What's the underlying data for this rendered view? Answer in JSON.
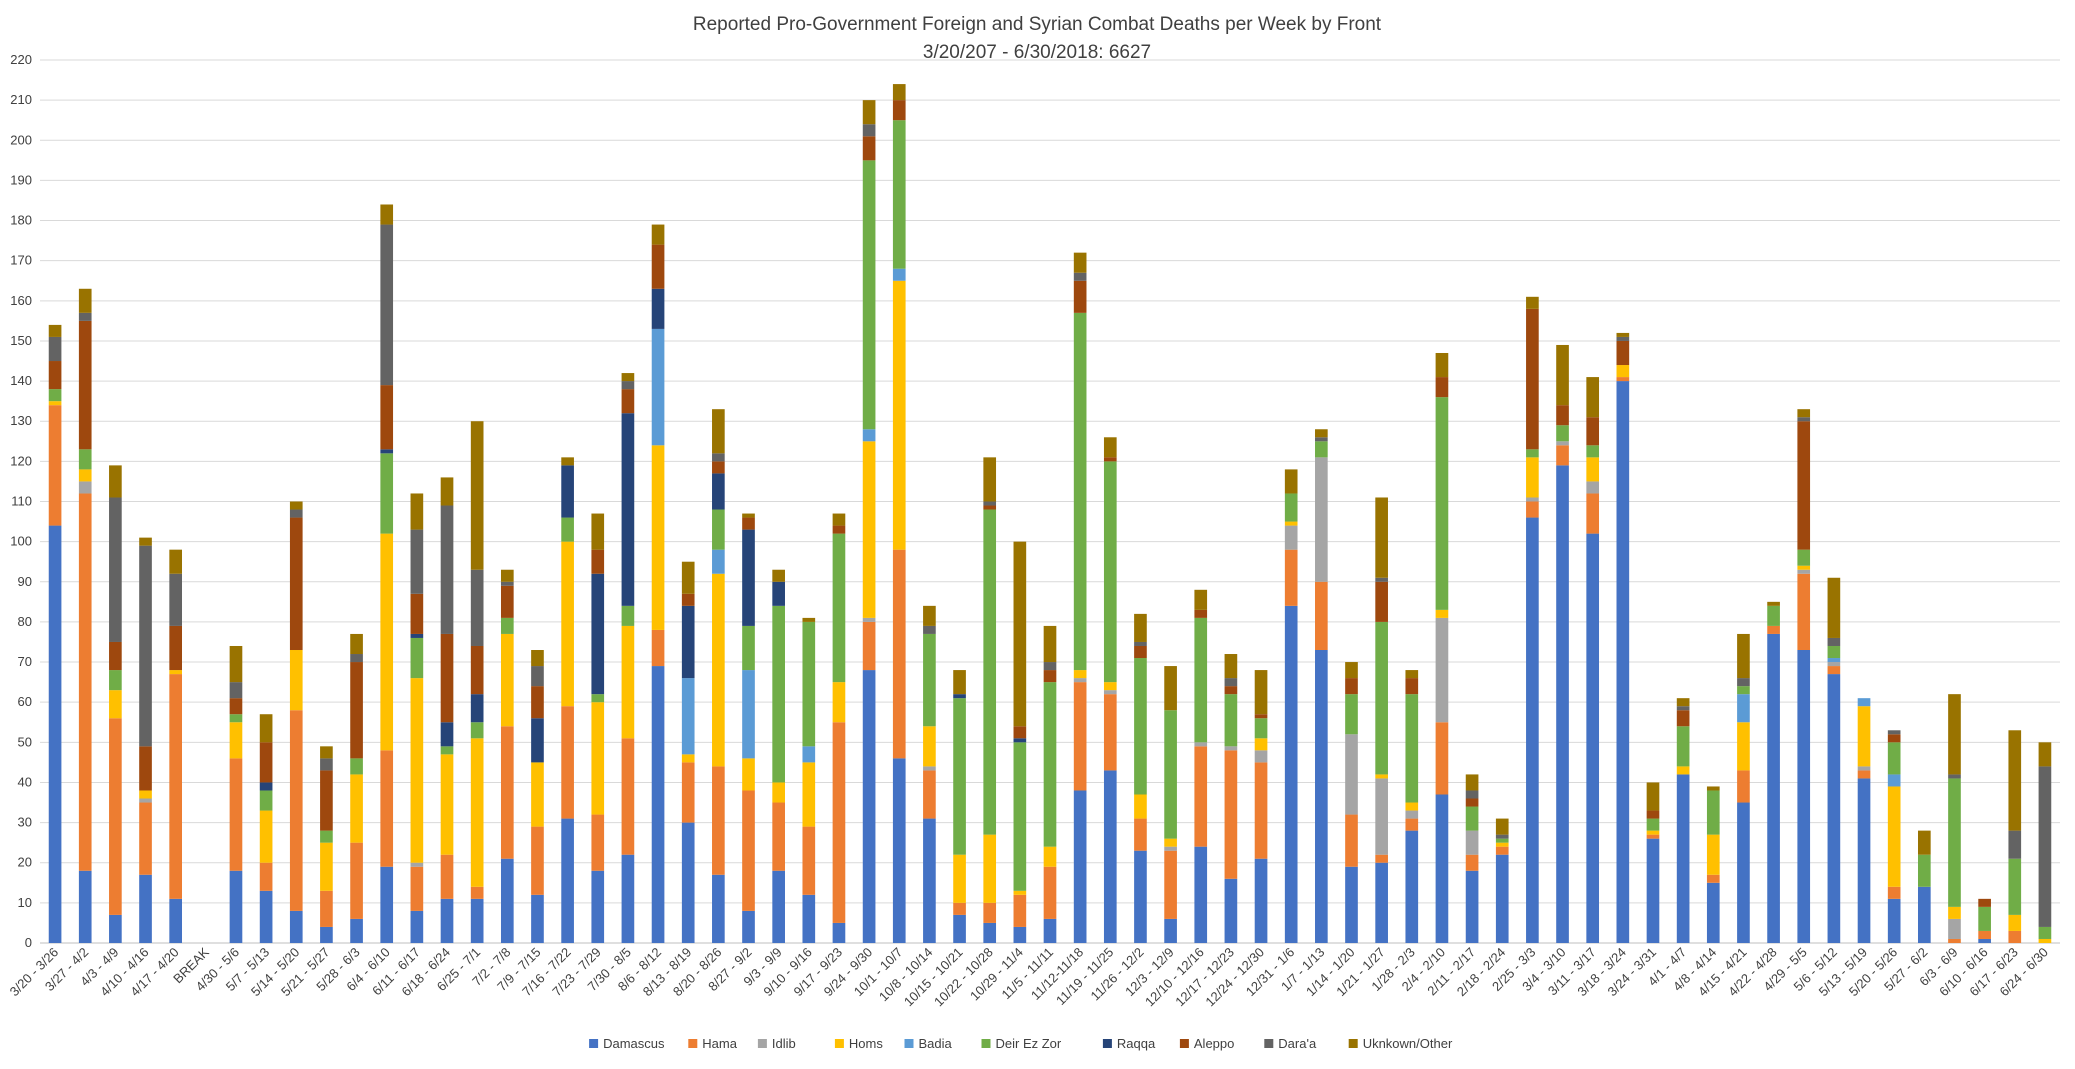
{
  "chart_data": {
    "type": "bar",
    "stacked": true,
    "title_line1": "Reported Pro-Government  Foreign and Syrian Combat Deaths per Week by Front",
    "title_line2": "3/20/207 - 6/30/2018: 6627",
    "ylim": [
      0,
      220
    ],
    "y_ticks": [
      0,
      10,
      20,
      30,
      40,
      50,
      60,
      70,
      80,
      90,
      100,
      110,
      120,
      130,
      140,
      150,
      160,
      170,
      180,
      190,
      200,
      210,
      220
    ],
    "grid": true,
    "legend_position": "bottom",
    "categories": [
      "3/20 - 3/26",
      "3/27 - 4/2",
      "4/3 - 4/9",
      "4/10 - 4/16",
      "4/17 - 4/20",
      "BREAK",
      "4/30 - 5/6",
      "5/7 - 5/13",
      "5/14 - 5/20",
      "5/21 - 5/27",
      "5/28 - 6/3",
      "6/4 - 6/10",
      "6/11 - 6/17",
      "6/18 - 6/24",
      "6/25 - 7/1",
      "7/2 - 7/8",
      "7/9 - 7/15",
      "7/16 - 7/22",
      "7/23 - 7/29",
      "7/30 - 8/5",
      "8/6 - 8/12",
      "8/13 - 8/19",
      "8/20 - 8/26",
      "8/27 - 9/2",
      "9/3 - 9/9",
      "9/10 - 9/16",
      "9/17 - 9/23",
      "9/24 - 9/30",
      "10/1 - 10/7",
      "10/8 - 10/14",
      "10/15 - 10/21",
      "10/22 - 10/28",
      "10/29 - 11/4",
      "11/5 - 11/11",
      "11/12-11/18",
      "11/19 - 11/25",
      "11/26 - 12/2",
      "12/3 - 12/9",
      "12/10 - 12/16",
      "12/17 - 12/23",
      "12/24 - 12/30",
      "12/31 - 1/6",
      "1/7 - 1/13",
      "1/14 - 1/20",
      "1/21 - 1/27",
      "1/28 - 2/3",
      "2/4 - 2/10",
      "2/11 - 2/17",
      "2/18 - 2/24",
      "2/25 - 3/3",
      "3/4 - 3/10",
      "3/11 - 3/17",
      "3/18 - 3/24",
      "3/24 - 3/31",
      "4/1 - 4/7",
      "4/8 - 4/14",
      "4/15 - 4/21",
      "4/22 - 4/28",
      "4/29 - 5/5",
      "5/6 - 5/12",
      "5/13 - 5/19",
      "5/20 - 5/26",
      "5/27 - 6/2",
      "6/3 - 6/9",
      "6/10 - 6/16",
      "6/17 - 6/23",
      "6/24 - 6/30"
    ],
    "series": [
      {
        "name": "Damascus",
        "color": "#4472C4",
        "values": [
          104,
          18,
          7,
          17,
          11,
          0,
          18,
          13,
          8,
          4,
          6,
          19,
          8,
          11,
          11,
          21,
          12,
          31,
          18,
          22,
          69,
          30,
          17,
          8,
          18,
          12,
          5,
          68,
          46,
          31,
          7,
          5,
          4,
          6,
          38,
          43,
          23,
          6,
          24,
          16,
          21,
          84,
          73,
          19,
          20,
          28,
          37,
          18,
          22,
          106,
          119,
          102,
          140,
          26,
          42,
          15,
          35,
          77,
          73,
          67,
          41,
          11,
          14,
          0,
          1,
          0,
          0
        ]
      },
      {
        "name": "Hama",
        "color": "#ED7D31",
        "values": [
          30,
          94,
          49,
          18,
          56,
          0,
          28,
          7,
          50,
          9,
          19,
          29,
          11,
          11,
          3,
          33,
          17,
          28,
          14,
          29,
          9,
          15,
          27,
          30,
          17,
          17,
          50,
          12,
          52,
          12,
          3,
          5,
          8,
          13,
          27,
          19,
          8,
          17,
          25,
          32,
          24,
          14,
          17,
          13,
          2,
          3,
          18,
          4,
          2,
          4,
          5,
          10,
          1,
          1,
          0,
          2,
          8,
          2,
          19,
          2,
          2,
          3,
          0,
          1,
          2,
          3,
          0
        ]
      },
      {
        "name": "Idlib",
        "color": "#A5A5A5",
        "values": [
          0,
          3,
          0,
          1,
          0,
          0,
          0,
          0,
          0,
          0,
          0,
          0,
          1,
          0,
          0,
          0,
          0,
          0,
          0,
          0,
          0,
          0,
          0,
          0,
          0,
          0,
          0,
          1,
          0,
          1,
          0,
          0,
          0,
          0,
          1,
          1,
          0,
          1,
          1,
          1,
          3,
          6,
          31,
          20,
          19,
          2,
          26,
          6,
          0,
          1,
          1,
          3,
          0,
          0,
          0,
          0,
          0,
          0,
          1,
          1,
          1,
          0,
          0,
          5,
          0,
          0,
          0
        ]
      },
      {
        "name": "Homs",
        "color": "#FFC000",
        "values": [
          1,
          3,
          7,
          2,
          1,
          0,
          9,
          13,
          15,
          12,
          17,
          54,
          46,
          25,
          37,
          23,
          16,
          41,
          28,
          28,
          46,
          2,
          48,
          8,
          5,
          16,
          10,
          44,
          67,
          10,
          12,
          17,
          1,
          5,
          2,
          2,
          6,
          2,
          0,
          0,
          3,
          1,
          0,
          0,
          1,
          2,
          2,
          0,
          1,
          10,
          0,
          6,
          3,
          1,
          2,
          10,
          12,
          0,
          1,
          0,
          15,
          25,
          0,
          3,
          0,
          4,
          1
        ]
      },
      {
        "name": "Badia",
        "color": "#5B9BD5",
        "values": [
          0,
          0,
          0,
          0,
          0,
          0,
          0,
          0,
          0,
          0,
          0,
          0,
          0,
          0,
          0,
          0,
          0,
          0,
          0,
          0,
          29,
          19,
          6,
          22,
          0,
          4,
          0,
          3,
          3,
          0,
          0,
          0,
          0,
          0,
          0,
          0,
          0,
          0,
          0,
          0,
          0,
          0,
          0,
          0,
          0,
          0,
          0,
          0,
          0,
          0,
          0,
          0,
          0,
          0,
          0,
          0,
          7,
          0,
          0,
          1,
          2,
          3,
          0,
          0,
          0,
          0,
          0
        ]
      },
      {
        "name": "Deir Ez Zor",
        "color": "#70AD47",
        "values": [
          3,
          5,
          5,
          0,
          0,
          0,
          2,
          5,
          0,
          3,
          4,
          20,
          10,
          2,
          4,
          4,
          0,
          6,
          2,
          5,
          0,
          0,
          10,
          11,
          44,
          31,
          37,
          67,
          37,
          23,
          39,
          81,
          37,
          41,
          89,
          55,
          34,
          32,
          31,
          13,
          5,
          7,
          4,
          10,
          38,
          27,
          53,
          6,
          1,
          2,
          4,
          3,
          0,
          3,
          10,
          11,
          2,
          5,
          4,
          3,
          0,
          8,
          8,
          32,
          6,
          14,
          3
        ]
      },
      {
        "name": "Raqqa",
        "color": "#264478",
        "values": [
          0,
          0,
          0,
          0,
          0,
          0,
          0,
          2,
          0,
          0,
          0,
          1,
          1,
          6,
          7,
          0,
          11,
          13,
          30,
          48,
          10,
          18,
          9,
          24,
          6,
          0,
          0,
          0,
          0,
          0,
          1,
          0,
          1,
          0,
          0,
          0,
          0,
          0,
          0,
          0,
          0,
          0,
          0,
          0,
          0,
          0,
          0,
          0,
          0,
          0,
          0,
          0,
          0,
          0,
          0,
          0,
          0,
          0,
          0,
          0,
          0,
          0,
          0,
          0,
          0,
          0,
          0
        ]
      },
      {
        "name": "Aleppo",
        "color": "#9E480E",
        "values": [
          7,
          32,
          7,
          11,
          11,
          0,
          4,
          10,
          33,
          15,
          24,
          16,
          10,
          22,
          12,
          8,
          8,
          0,
          6,
          6,
          11,
          3,
          3,
          3,
          0,
          0,
          2,
          6,
          5,
          0,
          0,
          1,
          3,
          3,
          8,
          1,
          3,
          0,
          2,
          2,
          1,
          0,
          0,
          4,
          10,
          4,
          5,
          2,
          0,
          35,
          5,
          7,
          6,
          2,
          4,
          0,
          0,
          0,
          32,
          0,
          0,
          2,
          0,
          0,
          2,
          0,
          0
        ]
      },
      {
        "name": "Dara'a",
        "color": "#636363",
        "values": [
          6,
          2,
          36,
          50,
          13,
          0,
          4,
          0,
          2,
          3,
          2,
          40,
          16,
          32,
          19,
          1,
          5,
          0,
          0,
          2,
          0,
          0,
          2,
          0,
          0,
          0,
          0,
          3,
          0,
          2,
          0,
          1,
          0,
          2,
          2,
          0,
          1,
          0,
          0,
          2,
          0,
          0,
          1,
          0,
          1,
          0,
          0,
          2,
          1,
          0,
          0,
          0,
          1,
          0,
          1,
          0,
          2,
          0,
          1,
          2,
          0,
          1,
          0,
          1,
          0,
          7,
          40
        ]
      },
      {
        "name": "Uknkown/Other",
        "color": "#997300",
        "values": [
          3,
          6,
          8,
          2,
          6,
          0,
          9,
          7,
          2,
          3,
          5,
          5,
          9,
          7,
          37,
          3,
          4,
          2,
          9,
          2,
          5,
          8,
          11,
          1,
          3,
          1,
          3,
          6,
          4,
          5,
          6,
          11,
          46,
          9,
          5,
          5,
          7,
          11,
          5,
          6,
          11,
          6,
          2,
          4,
          20,
          2,
          6,
          4,
          4,
          3,
          15,
          10,
          1,
          7,
          2,
          1,
          11,
          1,
          2,
          15,
          0,
          0,
          6,
          20,
          0,
          25,
          6
        ]
      }
    ],
    "legend": [
      "Damascus",
      "Hama",
      "Idlib",
      "Homs",
      "Badia",
      "Deir Ez Zor",
      "Raqqa",
      "Aleppo",
      "Dara'a",
      "Uknkown/Other"
    ]
  }
}
